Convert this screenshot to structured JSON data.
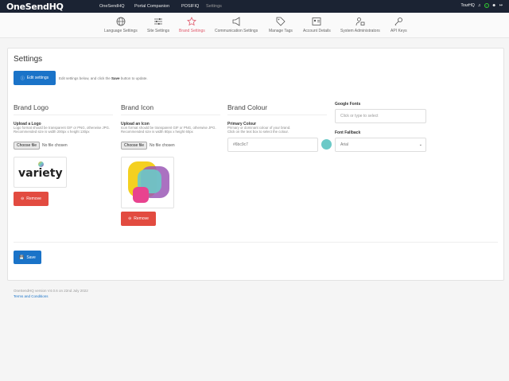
{
  "topbar": {
    "brand": "OneSendHQ",
    "nav": [
      "OneSendHQ",
      "Portal Companion",
      "POSIFIQ",
      "Settings"
    ],
    "user": "TourHQ"
  },
  "subnav": [
    {
      "label": "Language Settings",
      "icon": "globe-icon"
    },
    {
      "label": "Site Settings",
      "icon": "sliders-icon"
    },
    {
      "label": "Brand Settings",
      "icon": "star-icon",
      "active": true
    },
    {
      "label": "Communication Settings",
      "icon": "megaphone-icon"
    },
    {
      "label": "Manage Tags",
      "icon": "tags-icon"
    },
    {
      "label": "Account Details",
      "icon": "id-card-icon"
    },
    {
      "label": "System Administrators",
      "icon": "user-lock-icon"
    },
    {
      "label": "API Keys",
      "icon": "key-icon"
    }
  ],
  "page": {
    "title": "Settings",
    "edit_label": "Edit settings",
    "hint_pre": "Edit settings below, and click the ",
    "hint_bold": "Save",
    "hint_post": " button to update."
  },
  "logo": {
    "heading": "Brand Logo",
    "label": "Upload a Logo",
    "help1": "Logo format should be transparent GIF or PNG, otherwise JPG.",
    "help2": "Recommended size is width 200px x height 130px",
    "choose": "Choose file",
    "nofile": "No file chosen",
    "logo_text": "variety",
    "remove": "Remove"
  },
  "icon": {
    "heading": "Brand Icon",
    "label": "Upload an Icon",
    "help1": "Icon format should be transparent GIF or PNG, otherwise JPG.",
    "help2": "Recommended size is width 80px x height 60px",
    "choose": "Choose file",
    "nofile": "No file chosen",
    "remove": "Remove"
  },
  "colour": {
    "heading": "Brand Colour",
    "label": "Primary Colour",
    "help1": "Primary or dominant colour of your brand.",
    "help2": "Click on the text box to select the colour.",
    "value": "#6bc9c7",
    "swatch": "#6bc9c7"
  },
  "fonts": {
    "google_label": "Google Fonts",
    "google_placeholder": "Click or type to select",
    "fallback_label": "Font Fallback",
    "fallback_value": "Arial"
  },
  "save_label": "Save",
  "footer": {
    "version": "OneSendHQ version V4.0.6 on 22nd July 2022",
    "terms": "Terms and Conditions"
  },
  "colors": {
    "accent": "#1a73c8",
    "danger": "#e24b40",
    "topbar": "#1b2333",
    "active": "#e05b6d"
  }
}
